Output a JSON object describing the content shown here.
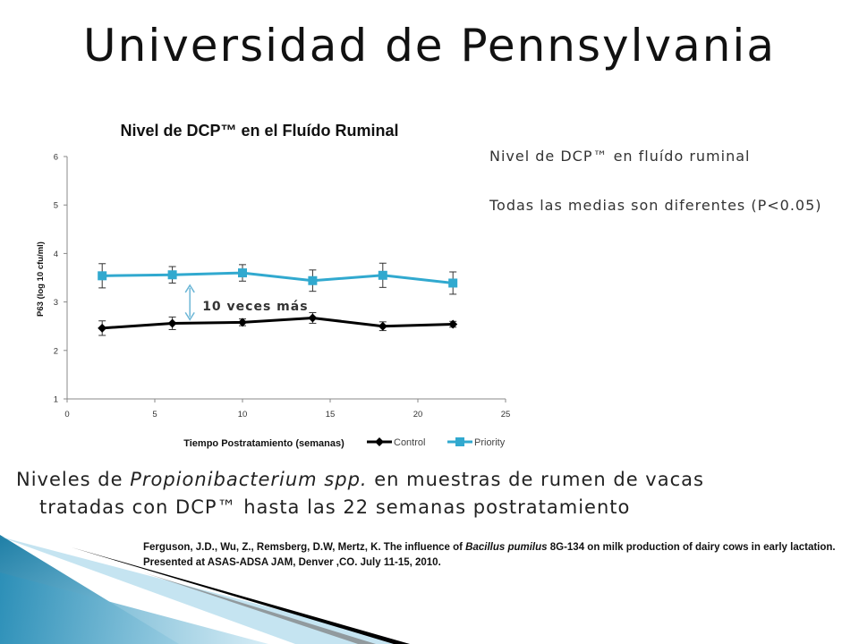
{
  "slide": {
    "title": "Universidad de Pennsylvania",
    "side_note_1": "Nivel de DCP™  en fluído ruminal",
    "side_note_2": "Todas las medias son diferentes (P<0.05)",
    "caption_prefix": "Niveles de ",
    "caption_italic": "Propionibacterium spp.",
    "caption_line1_rest": "  en muestras de rumen de vacas",
    "caption_line2": "tratadas con DCP™  hasta las 22 semanas postratamiento",
    "reference_prefix": "Ferguson, J.D., Wu, Z., Remsberg, D.W, Mertz, K.  The influence of ",
    "reference_italic": "Bacillus pumilus",
    "reference_rest": " 8G-134 on milk production of dairy cows in early lactation.   Presented at ASAS-ADSA JAM, Denver ,CO. July 11-15, 2010.",
    "colors": {
      "control": "#000000",
      "priority": "#31a9cf",
      "arrow": "#6cb6d6"
    }
  },
  "chart_data": {
    "type": "line",
    "title": "Nivel de DCP™  en el Fluído Ruminal",
    "xlabel": "Tiempo Postratamiento (semanas)",
    "ylabel": "P63 (log 10 cfu/ml)",
    "xlim": [
      0,
      25
    ],
    "ylim": [
      1,
      6
    ],
    "xticks": [
      0,
      5,
      10,
      15,
      20,
      25
    ],
    "yticks": [
      1,
      2,
      3,
      4,
      5,
      6
    ],
    "grid": false,
    "legend_position": "bottom-right",
    "annotation": "10 veces más",
    "x": [
      2,
      6,
      10,
      14,
      18,
      22
    ],
    "series": [
      {
        "name": "Control",
        "marker": "diamond",
        "values": [
          2.46,
          2.56,
          2.58,
          2.67,
          2.5,
          2.54
        ],
        "errors": [
          0.15,
          0.13,
          0.07,
          0.11,
          0.09,
          0.06
        ]
      },
      {
        "name": "Priority",
        "marker": "square",
        "values": [
          3.54,
          3.56,
          3.6,
          3.44,
          3.55,
          3.39
        ],
        "errors": [
          0.25,
          0.17,
          0.17,
          0.22,
          0.25,
          0.23
        ]
      }
    ]
  }
}
